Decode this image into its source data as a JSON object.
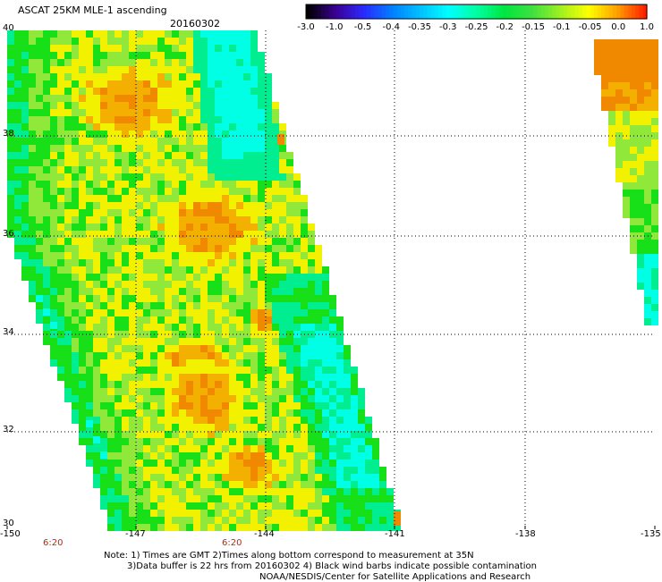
{
  "header": {
    "title": "ASCAT 25KM MLE-1 ascending",
    "date": "20160302"
  },
  "colorbar": {
    "labels": [
      "-3.0",
      "-1.0",
      "-0.5",
      "-0.4",
      "-0.35",
      "-0.3",
      "-0.25",
      "-0.2",
      "-0.15",
      "-0.1",
      "-0.05",
      "0.0",
      "1.0"
    ],
    "colors": [
      "#000000",
      "#3b0096",
      "#2a2aff",
      "#0080ff",
      "#00c0ff",
      "#00ffff",
      "#00ffa0",
      "#00e640",
      "#40e040",
      "#a0f020",
      "#ffff00",
      "#ffa000",
      "#ff2000"
    ]
  },
  "map": {
    "lat_ticks": [
      "40",
      "38",
      "36",
      "34",
      "32",
      "30"
    ],
    "lon_ticks": [
      "-150",
      "-147",
      "-144",
      "-141",
      "-138",
      "-135"
    ],
    "times": [
      "6:20",
      "6:20"
    ],
    "palette": {
      "cyan": "#00ffe4",
      "teal": "#00ee90",
      "green": "#18e018",
      "lime": "#90e83a",
      "yellow": "#f2f200",
      "orange": "#f4b000",
      "darkorange": "#f08800"
    }
  },
  "footer": {
    "line1": "Note: 1) Times are GMT 2)Times along bottom correspond to measurement at 35N",
    "line2": "3)Data buffer is 22 hrs from 20160302 4) Black wind barbs indicate possible contamination",
    "line3": "NOAA/NESDIS/Center for Satellite Applications and Research"
  }
}
